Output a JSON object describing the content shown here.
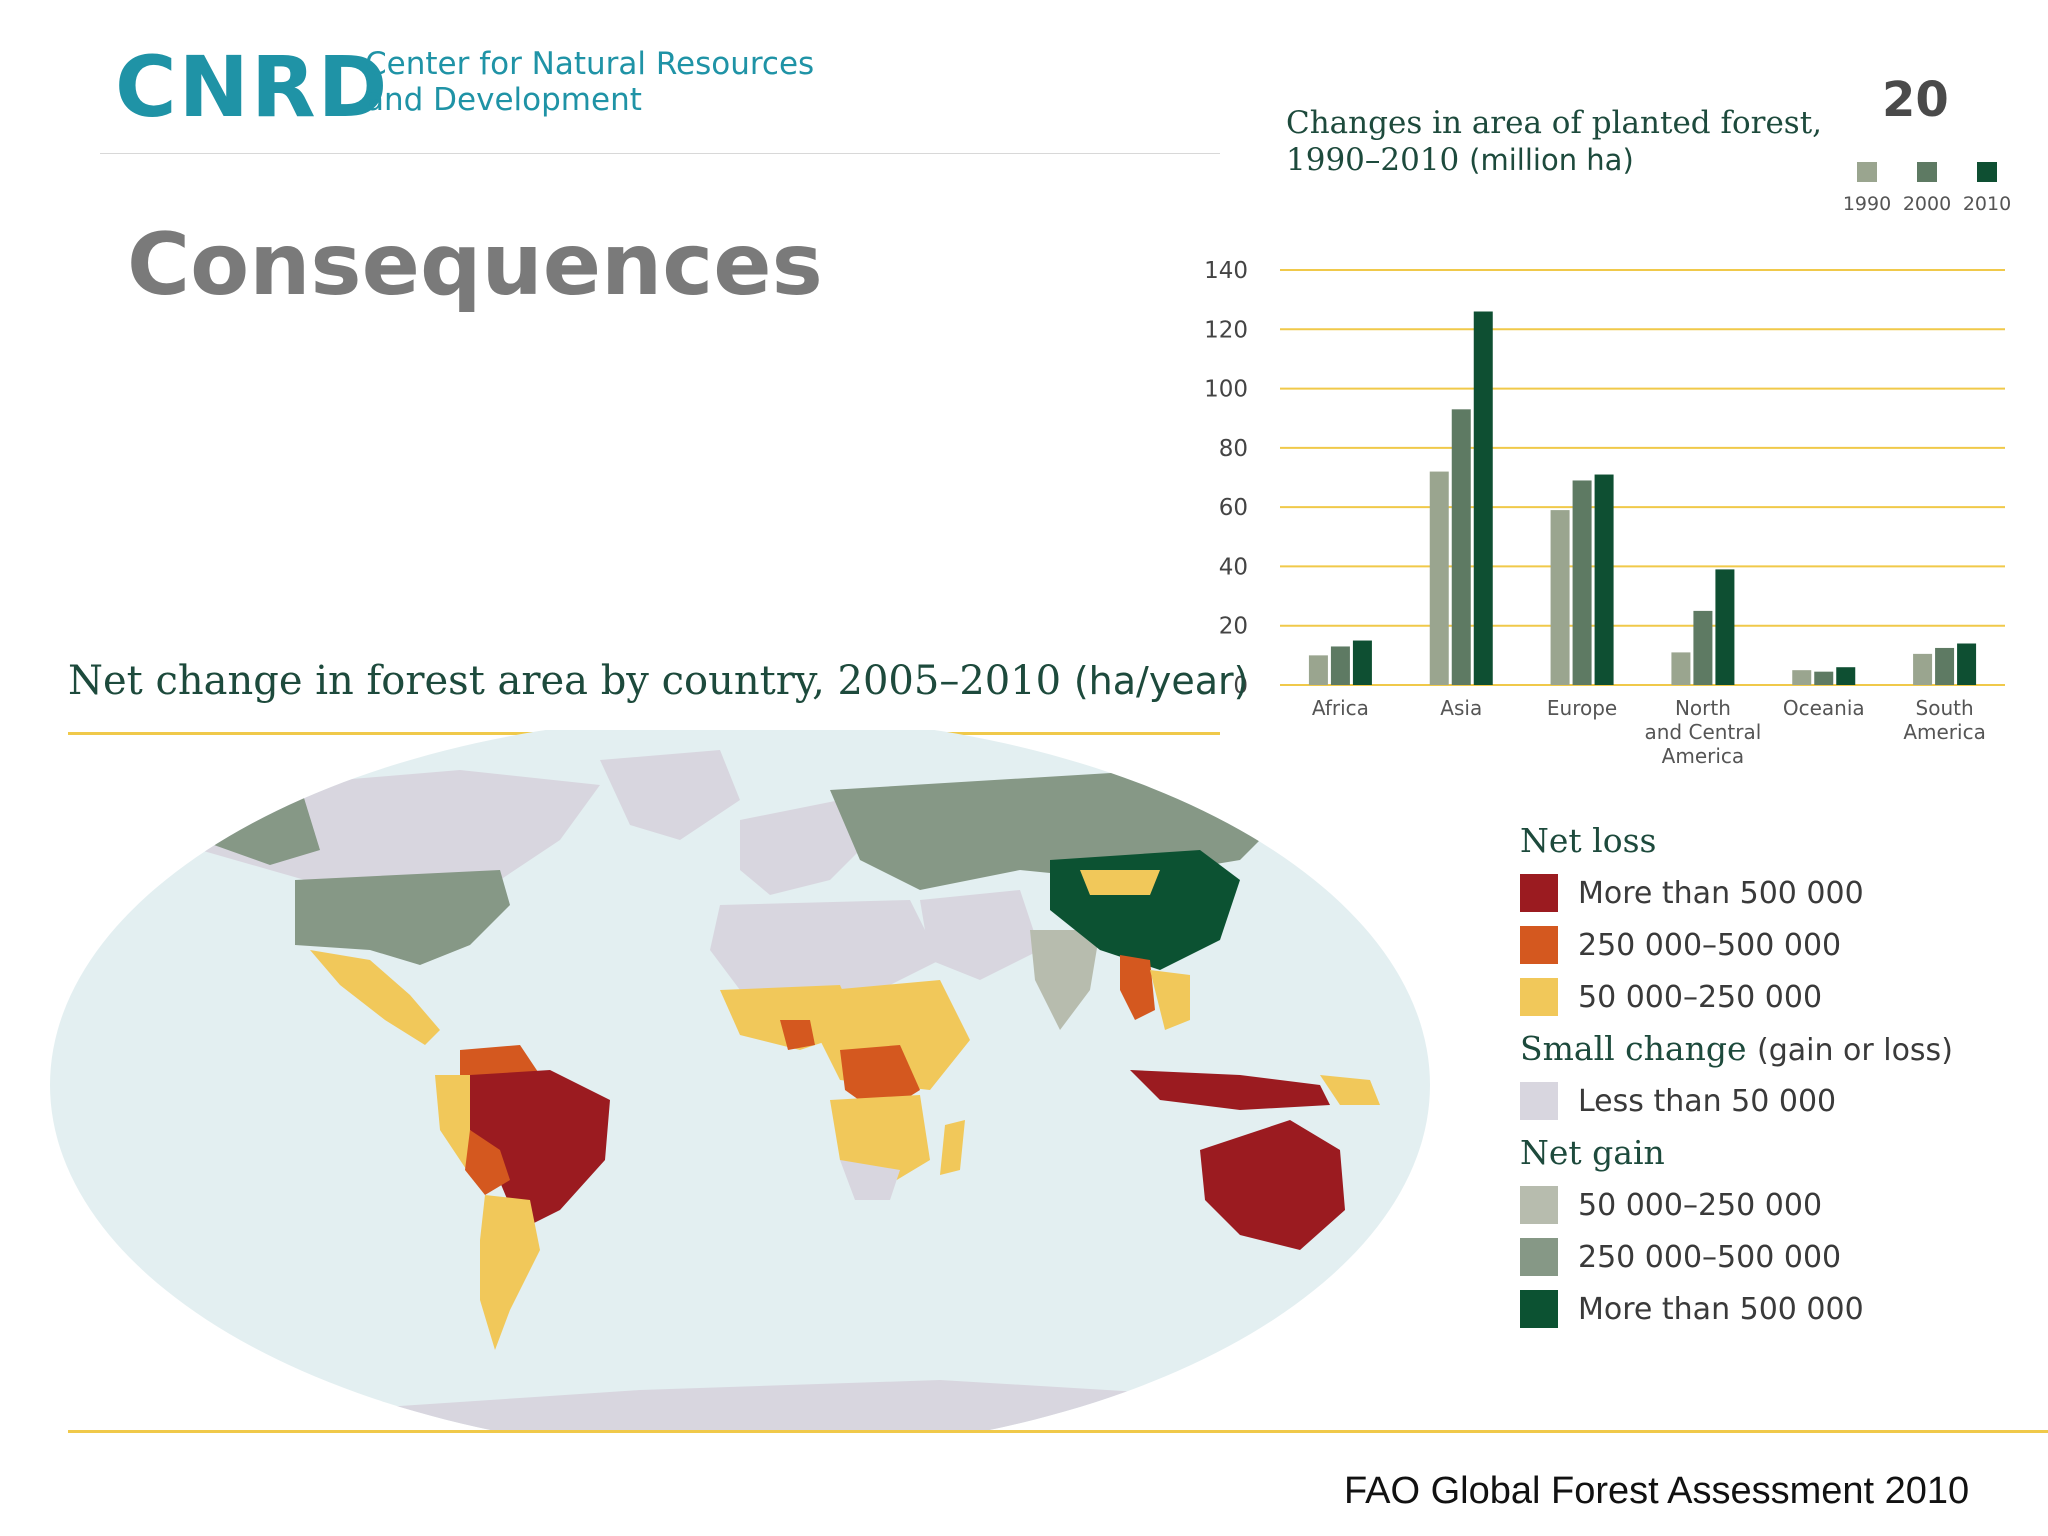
{
  "logo": {
    "mark": "CNRD",
    "line1": "Center for Natural Resources",
    "line2": "and Development"
  },
  "slide": {
    "title": "Consequences",
    "number": "20",
    "source": "FAO Global Forest Assessment 2010"
  },
  "chart_title": {
    "line1": "Changes in area of planted forest,",
    "line2_main": "1990–2010",
    "line2_unit": "(million ha)"
  },
  "chart_data": {
    "type": "bar",
    "categories": [
      "Africa",
      "Asia",
      "Europe",
      "North and Central America",
      "Oceania",
      "South America"
    ],
    "category_lines": [
      [
        "Africa"
      ],
      [
        "Asia"
      ],
      [
        "Europe"
      ],
      [
        "North",
        "and Central",
        "America"
      ],
      [
        "Oceania"
      ],
      [
        "South",
        "America"
      ]
    ],
    "series": [
      {
        "name": "1990",
        "color": "#9aa58f",
        "values": [
          10,
          72,
          59,
          11,
          5,
          10.5
        ]
      },
      {
        "name": "2000",
        "color": "#5e7a63",
        "values": [
          13,
          93,
          69,
          25,
          4.5,
          12.5
        ]
      },
      {
        "name": "2010",
        "color": "#0e4f32",
        "values": [
          15,
          126,
          71,
          39,
          6,
          14
        ]
      }
    ],
    "ylim": [
      0,
      140
    ],
    "yticks": [
      0,
      20,
      40,
      60,
      80,
      100,
      120,
      140
    ],
    "grid": true,
    "grid_color": "#f0c94a",
    "legend_position": "top-right"
  },
  "map": {
    "title_main": "Net change in forest area by country, 2005–2010",
    "title_unit": "(ha/year)",
    "ocean_color": "#e3eff1",
    "colors": {
      "loss_high": "#9b1b20",
      "loss_mid": "#d4581f",
      "loss_low": "#f1c85a",
      "small": "#d8d6df",
      "gain_low": "#b7bcae",
      "gain_mid": "#869886",
      "gain_high": "#0c5232"
    }
  },
  "legend": {
    "net_loss": "Net loss",
    "small_change": "Small change",
    "small_change_note": "(gain or loss)",
    "net_gain": "Net gain",
    "items": [
      {
        "label": "More than 500 000",
        "color": "#9b1b20"
      },
      {
        "label": "250 000–500 000",
        "color": "#d4581f"
      },
      {
        "label": "50 000–250 000",
        "color": "#f1c85a"
      },
      {
        "label": "Less than 50 000",
        "color": "#d8d6df"
      },
      {
        "label": "50 000–250 000",
        "color": "#b7bcae"
      },
      {
        "label": "250 000–500 000",
        "color": "#869886"
      },
      {
        "label": "More than 500 000",
        "color": "#0c5232"
      }
    ]
  }
}
